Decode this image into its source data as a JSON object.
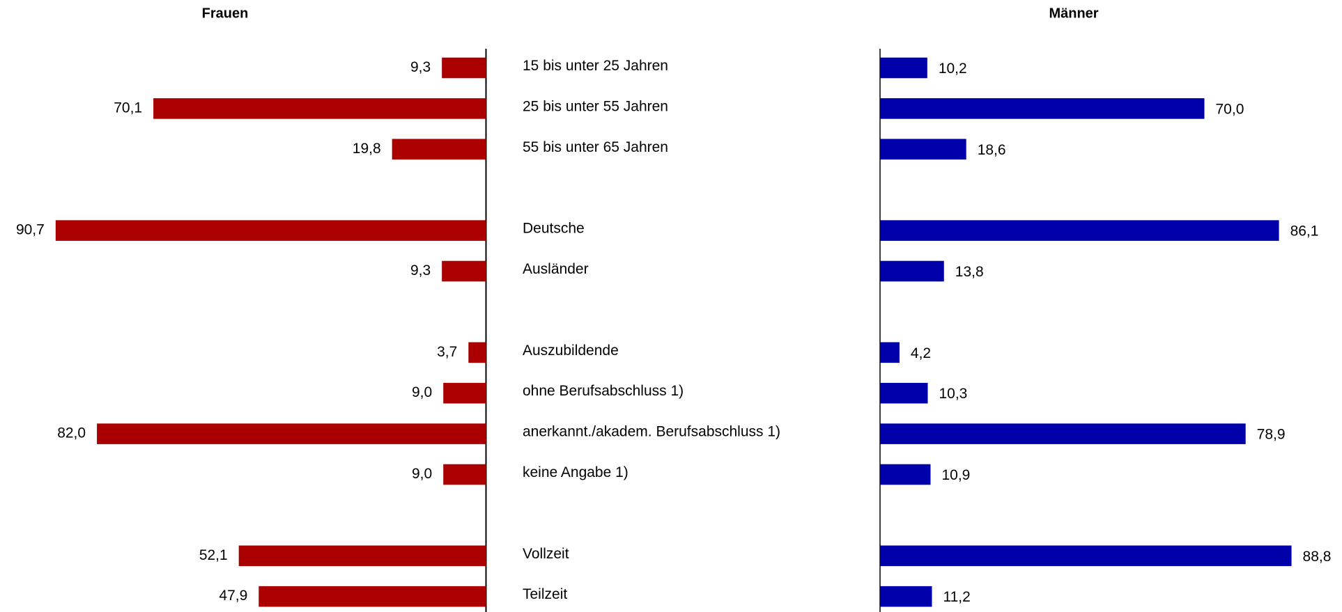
{
  "chart_data": {
    "type": "butterfly-bar",
    "categories": [
      "15 bis unter 25 Jahren",
      "25 bis unter 55 Jahren",
      "55 bis unter 65 Jahren",
      null,
      "Deutsche",
      "Ausländer",
      null,
      "Auszubildende",
      "ohne Berufsabschluss 1)",
      "anerkannt./akadem. Berufsabschluss 1)",
      "keine Angabe 1)",
      null,
      "Vollzeit",
      "Teilzeit"
    ],
    "xlim": [
      0,
      100
    ],
    "series": [
      {
        "name": "Frauen",
        "color": "#aa0000",
        "values": [
          9.3,
          70.1,
          19.8,
          null,
          90.7,
          9.3,
          null,
          3.7,
          9.0,
          82.0,
          9.0,
          null,
          52.1,
          47.9
        ],
        "value_labels": [
          "9,3",
          "70,1",
          "19,8",
          null,
          "90,7",
          "9,3",
          null,
          "3,7",
          "9,0",
          "82,0",
          "9,0",
          null,
          "52,1",
          "47,9"
        ]
      },
      {
        "name": "Männer",
        "color": "#0000aa",
        "values": [
          10.2,
          70.0,
          18.6,
          null,
          86.1,
          13.8,
          null,
          4.2,
          10.3,
          78.9,
          10.9,
          null,
          88.8,
          11.2
        ],
        "value_labels": [
          "10,2",
          "70,0",
          "18,6",
          null,
          "86,1",
          "13,8",
          null,
          "4,2",
          "10,3",
          "78,9",
          "10,9",
          null,
          "88,8",
          "11,2"
        ]
      }
    ]
  }
}
